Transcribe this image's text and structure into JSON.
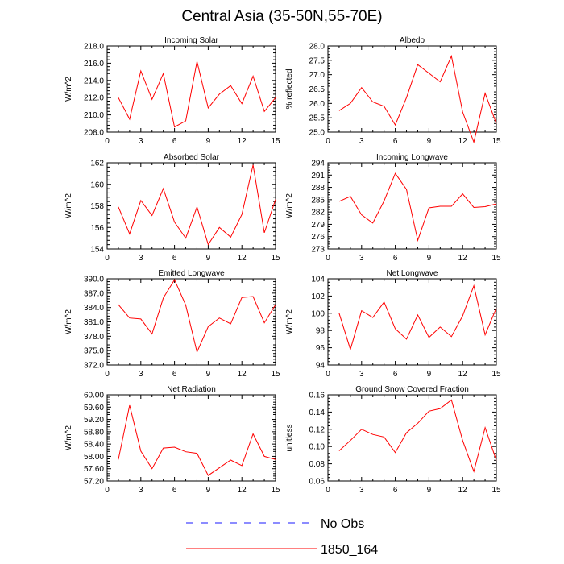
{
  "title": "Central Asia (35-50N,55-70E)",
  "colors": {
    "model": "#ff0000",
    "obs": "#1a1aff",
    "axis": "#000000"
  },
  "legend": [
    {
      "label": "No Obs",
      "style": "dashed",
      "color": "#1a1aff"
    },
    {
      "label": "1850_164",
      "style": "solid",
      "color": "#ff0000"
    }
  ],
  "chart_data": [
    {
      "type": "line",
      "title": "Incoming Solar",
      "ylabel": "W/m^2",
      "xlim": [
        0,
        15
      ],
      "xticks": [
        0,
        3,
        6,
        9,
        12,
        15
      ],
      "ylim": [
        208,
        218
      ],
      "yticks": [
        "208.0",
        "210.0",
        "212.0",
        "214.0",
        "216.0",
        "218.0"
      ],
      "x": [
        1,
        2,
        3,
        4,
        5,
        6,
        7,
        8,
        9,
        10,
        11,
        12,
        13,
        14,
        15
      ],
      "series": [
        {
          "name": "1850_164",
          "values": [
            212.0,
            209.5,
            215.1,
            211.8,
            214.8,
            208.6,
            209.3,
            216.2,
            210.8,
            212.4,
            213.4,
            211.3,
            214.5,
            210.4,
            212.0
          ]
        }
      ]
    },
    {
      "type": "line",
      "title": "Albedo",
      "ylabel": "% reflected",
      "xlim": [
        0,
        15
      ],
      "xticks": [
        0,
        3,
        6,
        9,
        12,
        15
      ],
      "ylim": [
        25,
        28
      ],
      "yticks": [
        "25.0",
        "25.5",
        "26.0",
        "26.5",
        "27.0",
        "27.5",
        "28.0"
      ],
      "x": [
        1,
        2,
        3,
        4,
        5,
        6,
        7,
        8,
        9,
        10,
        11,
        12,
        13,
        14,
        15
      ],
      "series": [
        {
          "name": "1850_164",
          "values": [
            25.75,
            26.0,
            26.55,
            26.05,
            25.9,
            25.25,
            26.2,
            27.35,
            27.05,
            26.75,
            27.65,
            25.7,
            24.65,
            26.35,
            25.3
          ]
        }
      ]
    },
    {
      "type": "line",
      "title": "Absorbed Solar",
      "ylabel": "W/m^2",
      "xlim": [
        0,
        15
      ],
      "xticks": [
        0,
        3,
        6,
        9,
        12,
        15
      ],
      "ylim": [
        154,
        162
      ],
      "yticks": [
        "154",
        "156",
        "158",
        "160",
        "162"
      ],
      "x": [
        1,
        2,
        3,
        4,
        5,
        6,
        7,
        8,
        9,
        10,
        11,
        12,
        13,
        14,
        15
      ],
      "series": [
        {
          "name": "1850_164",
          "values": [
            157.9,
            155.4,
            158.5,
            157.1,
            159.6,
            156.5,
            155.0,
            157.9,
            154.4,
            156.0,
            155.1,
            157.2,
            161.8,
            155.5,
            158.6
          ]
        }
      ]
    },
    {
      "type": "line",
      "title": "Incoming Longwave",
      "ylabel": "W/m^2",
      "xlim": [
        0,
        15
      ],
      "xticks": [
        0,
        3,
        6,
        9,
        12,
        15
      ],
      "ylim": [
        273,
        294
      ],
      "yticks": [
        "273",
        "276",
        "279",
        "282",
        "285",
        "288",
        "291",
        "294"
      ],
      "x": [
        1,
        2,
        3,
        4,
        5,
        6,
        7,
        8,
        9,
        10,
        11,
        12,
        13,
        14,
        15
      ],
      "series": [
        {
          "name": "1850_164",
          "values": [
            284.6,
            285.8,
            281.3,
            279.3,
            284.7,
            291.4,
            287.5,
            275.1,
            283.0,
            283.4,
            283.4,
            286.4,
            283.1,
            283.3,
            284.0
          ]
        }
      ]
    },
    {
      "type": "line",
      "title": "Emitted Longwave",
      "ylabel": "W/m^2",
      "xlim": [
        0,
        15
      ],
      "xticks": [
        0,
        3,
        6,
        9,
        12,
        15
      ],
      "ylim": [
        372,
        390
      ],
      "yticks": [
        "372.0",
        "375.0",
        "378.0",
        "381.0",
        "384.0",
        "387.0",
        "390.0"
      ],
      "x": [
        1,
        2,
        3,
        4,
        5,
        6,
        7,
        8,
        9,
        10,
        11,
        12,
        13,
        14,
        15
      ],
      "series": [
        {
          "name": "1850_164",
          "values": [
            384.6,
            381.8,
            381.6,
            378.5,
            386.0,
            389.8,
            384.5,
            374.7,
            380.0,
            381.8,
            380.6,
            386.1,
            386.3,
            380.8,
            384.6
          ]
        }
      ]
    },
    {
      "type": "line",
      "title": "Net Longwave",
      "ylabel": "W/m^2",
      "xlim": [
        0,
        15
      ],
      "xticks": [
        0,
        3,
        6,
        9,
        12,
        15
      ],
      "ylim": [
        94,
        104
      ],
      "yticks": [
        "94",
        "96",
        "98",
        "100",
        "102",
        "104"
      ],
      "x": [
        1,
        2,
        3,
        4,
        5,
        6,
        7,
        8,
        9,
        10,
        11,
        12,
        13,
        14,
        15
      ],
      "series": [
        {
          "name": "1850_164",
          "values": [
            100.0,
            95.8,
            100.3,
            99.5,
            101.3,
            98.2,
            97.0,
            99.8,
            97.2,
            98.4,
            97.3,
            99.7,
            103.2,
            97.5,
            100.6
          ]
        }
      ]
    },
    {
      "type": "line",
      "title": "Net Radiation",
      "ylabel": "W/m^2",
      "xlim": [
        0,
        15
      ],
      "xticks": [
        0,
        3,
        6,
        9,
        12,
        15
      ],
      "ylim": [
        57.2,
        60.0
      ],
      "yticks": [
        "57.20",
        "57.60",
        "58.00",
        "58.40",
        "58.80",
        "59.20",
        "59.60",
        "60.00"
      ],
      "x": [
        1,
        2,
        3,
        4,
        5,
        6,
        7,
        8,
        9,
        10,
        11,
        12,
        13,
        14,
        15
      ],
      "series": [
        {
          "name": "1850_164",
          "values": [
            57.9,
            59.66,
            58.17,
            57.6,
            58.27,
            58.3,
            58.15,
            58.1,
            57.38,
            57.63,
            57.88,
            57.7,
            58.73,
            58.0,
            57.9
          ]
        }
      ]
    },
    {
      "type": "line",
      "title": "Ground Snow Covered Fraction",
      "ylabel": "unitless",
      "xlim": [
        0,
        15
      ],
      "xticks": [
        0,
        3,
        6,
        9,
        12,
        15
      ],
      "ylim": [
        0.06,
        0.16
      ],
      "yticks": [
        "0.06",
        "0.08",
        "0.10",
        "0.12",
        "0.14",
        "0.16"
      ],
      "x": [
        1,
        2,
        3,
        4,
        5,
        6,
        7,
        8,
        9,
        10,
        11,
        12,
        13,
        14,
        15
      ],
      "series": [
        {
          "name": "1850_164",
          "values": [
            0.095,
            0.107,
            0.12,
            0.114,
            0.111,
            0.093,
            0.116,
            0.127,
            0.141,
            0.144,
            0.154,
            0.107,
            0.071,
            0.122,
            0.084
          ]
        }
      ]
    }
  ]
}
